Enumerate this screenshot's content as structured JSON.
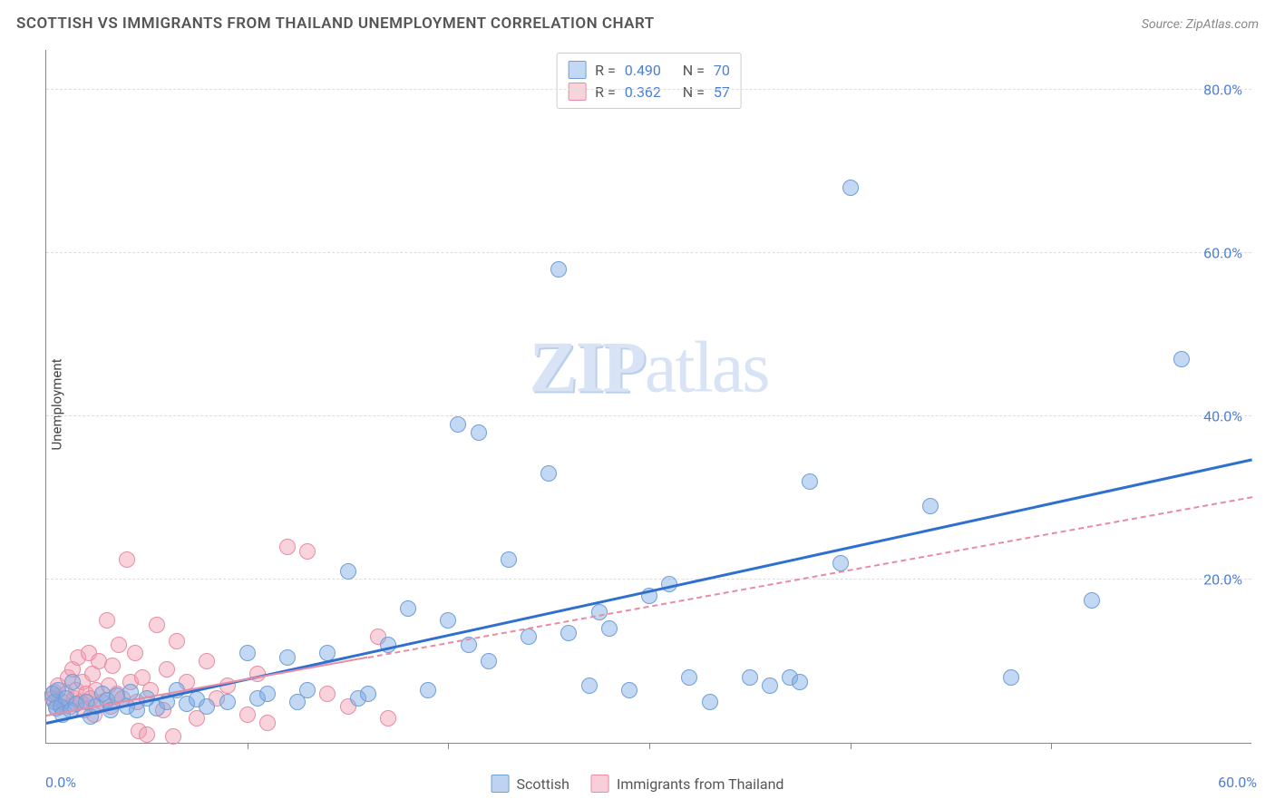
{
  "title": "SCOTTISH VS IMMIGRANTS FROM THAILAND UNEMPLOYMENT CORRELATION CHART",
  "source": "Source: ZipAtlas.com",
  "watermark": "ZIPatlas",
  "chart": {
    "type": "scatter",
    "ylabel": "Unemployment",
    "xlim": [
      0,
      60
    ],
    "ylim": [
      0,
      85
    ],
    "ytick_labels": [
      "20.0%",
      "40.0%",
      "60.0%",
      "80.0%"
    ],
    "ytick_values": [
      20,
      40,
      60,
      80
    ],
    "xtick_values": [
      10,
      20,
      30,
      40,
      50
    ],
    "xaxis_min_label": "0.0%",
    "xaxis_max_label": "60.0%",
    "background_color": "#ffffff",
    "grid_color": "#dddddd",
    "axis_color": "#888888",
    "tick_label_color": "#4a7fd8",
    "marker_radius": 9,
    "marker_border_width": 1.5,
    "series": [
      {
        "name": "Scottish",
        "fill_color": "rgba(123,168,227,0.45)",
        "border_color": "#6f9fd9",
        "trend_color": "#2f6fd0",
        "trend_width": 3,
        "trend_dash": "solid",
        "trend_x0": 0,
        "trend_y0": 2.2,
        "trend_x1": 60,
        "trend_y1": 34.5,
        "R": "0.490",
        "N": "70",
        "points": [
          [
            0.3,
            6.0
          ],
          [
            0.4,
            5.0
          ],
          [
            0.5,
            4.2
          ],
          [
            0.6,
            6.5
          ],
          [
            0.7,
            4.5
          ],
          [
            0.8,
            3.5
          ],
          [
            1.0,
            5.5
          ],
          [
            1.2,
            4.0
          ],
          [
            1.3,
            7.5
          ],
          [
            1.5,
            4.8
          ],
          [
            2.0,
            5.0
          ],
          [
            2.2,
            3.2
          ],
          [
            2.5,
            4.5
          ],
          [
            2.8,
            6.0
          ],
          [
            3.0,
            5.2
          ],
          [
            3.2,
            4.0
          ],
          [
            3.5,
            5.8
          ],
          [
            4.0,
            4.5
          ],
          [
            4.2,
            6.2
          ],
          [
            4.5,
            4.0
          ],
          [
            5.0,
            5.5
          ],
          [
            5.5,
            4.2
          ],
          [
            6.0,
            5.0
          ],
          [
            6.5,
            6.5
          ],
          [
            7.0,
            4.8
          ],
          [
            7.5,
            5.3
          ],
          [
            8.0,
            4.5
          ],
          [
            9.0,
            5.0
          ],
          [
            10.0,
            11.0
          ],
          [
            10.5,
            5.5
          ],
          [
            11.0,
            6.0
          ],
          [
            12.0,
            10.5
          ],
          [
            12.5,
            5.0
          ],
          [
            13.0,
            6.5
          ],
          [
            14.0,
            11.0
          ],
          [
            15.0,
            21.0
          ],
          [
            15.5,
            5.5
          ],
          [
            16.0,
            6.0
          ],
          [
            17.0,
            12.0
          ],
          [
            18.0,
            16.5
          ],
          [
            19.0,
            6.5
          ],
          [
            20.0,
            15.0
          ],
          [
            20.5,
            39.0
          ],
          [
            21.0,
            12.0
          ],
          [
            21.5,
            38.0
          ],
          [
            22.0,
            10.0
          ],
          [
            23.0,
            22.5
          ],
          [
            24.0,
            13.0
          ],
          [
            25.0,
            33.0
          ],
          [
            25.5,
            58.0
          ],
          [
            26.0,
            13.5
          ],
          [
            27.0,
            7.0
          ],
          [
            27.5,
            16.0
          ],
          [
            28.0,
            14.0
          ],
          [
            29.0,
            6.5
          ],
          [
            30.0,
            18.0
          ],
          [
            31.0,
            19.5
          ],
          [
            32.0,
            8.0
          ],
          [
            33.0,
            5.0
          ],
          [
            35.0,
            8.0
          ],
          [
            36.0,
            7.0
          ],
          [
            37.0,
            8.0
          ],
          [
            37.5,
            7.5
          ],
          [
            38.0,
            32.0
          ],
          [
            39.5,
            22.0
          ],
          [
            40.0,
            68.0
          ],
          [
            44.0,
            29.0
          ],
          [
            48.0,
            8.0
          ],
          [
            52.0,
            17.5
          ],
          [
            56.5,
            47.0
          ]
        ]
      },
      {
        "name": "Immigrants from Thailand",
        "fill_color": "rgba(241,158,178,0.45)",
        "border_color": "#e78ca2",
        "trend_color": "#e78ca2",
        "trend_width": 2,
        "trend_dash_solid_x1": 16,
        "trend_dash": "dashed",
        "trend_x0": 0,
        "trend_y0": 3.2,
        "trend_x1": 60,
        "trend_y1": 30.0,
        "R": "0.362",
        "N": "57",
        "points": [
          [
            0.3,
            5.5
          ],
          [
            0.4,
            6.2
          ],
          [
            0.5,
            4.5
          ],
          [
            0.6,
            7.0
          ],
          [
            0.8,
            5.0
          ],
          [
            1.0,
            6.0
          ],
          [
            1.1,
            8.0
          ],
          [
            1.2,
            4.5
          ],
          [
            1.3,
            9.0
          ],
          [
            1.4,
            5.5
          ],
          [
            1.5,
            6.5
          ],
          [
            1.6,
            10.5
          ],
          [
            1.7,
            5.0
          ],
          [
            1.8,
            7.5
          ],
          [
            1.9,
            4.0
          ],
          [
            2.0,
            6.0
          ],
          [
            2.1,
            11.0
          ],
          [
            2.2,
            5.5
          ],
          [
            2.3,
            8.5
          ],
          [
            2.4,
            3.5
          ],
          [
            2.5,
            6.5
          ],
          [
            2.6,
            10.0
          ],
          [
            2.8,
            5.0
          ],
          [
            3.0,
            15.0
          ],
          [
            3.1,
            7.0
          ],
          [
            3.2,
            4.5
          ],
          [
            3.3,
            9.5
          ],
          [
            3.5,
            6.0
          ],
          [
            3.6,
            12.0
          ],
          [
            3.8,
            5.5
          ],
          [
            4.0,
            22.5
          ],
          [
            4.2,
            7.5
          ],
          [
            4.4,
            11.0
          ],
          [
            4.5,
            5.0
          ],
          [
            4.6,
            1.5
          ],
          [
            4.8,
            8.0
          ],
          [
            5.0,
            1.0
          ],
          [
            5.2,
            6.5
          ],
          [
            5.5,
            14.5
          ],
          [
            5.8,
            4.0
          ],
          [
            6.0,
            9.0
          ],
          [
            6.3,
            0.8
          ],
          [
            6.5,
            12.5
          ],
          [
            7.0,
            7.5
          ],
          [
            7.5,
            3.0
          ],
          [
            8.0,
            10.0
          ],
          [
            8.5,
            5.5
          ],
          [
            9.0,
            7.0
          ],
          [
            10.0,
            3.5
          ],
          [
            10.5,
            8.5
          ],
          [
            11.0,
            2.5
          ],
          [
            12.0,
            24.0
          ],
          [
            13.0,
            23.5
          ],
          [
            14.0,
            6.0
          ],
          [
            15.0,
            4.5
          ],
          [
            16.5,
            13.0
          ],
          [
            17.0,
            3.0
          ]
        ]
      }
    ]
  },
  "legend_bottom": [
    {
      "label": "Scottish",
      "fill": "rgba(123,168,227,0.5)",
      "border": "#6f9fd9"
    },
    {
      "label": "Immigrants from Thailand",
      "fill": "rgba(241,158,178,0.5)",
      "border": "#e78ca2"
    }
  ]
}
